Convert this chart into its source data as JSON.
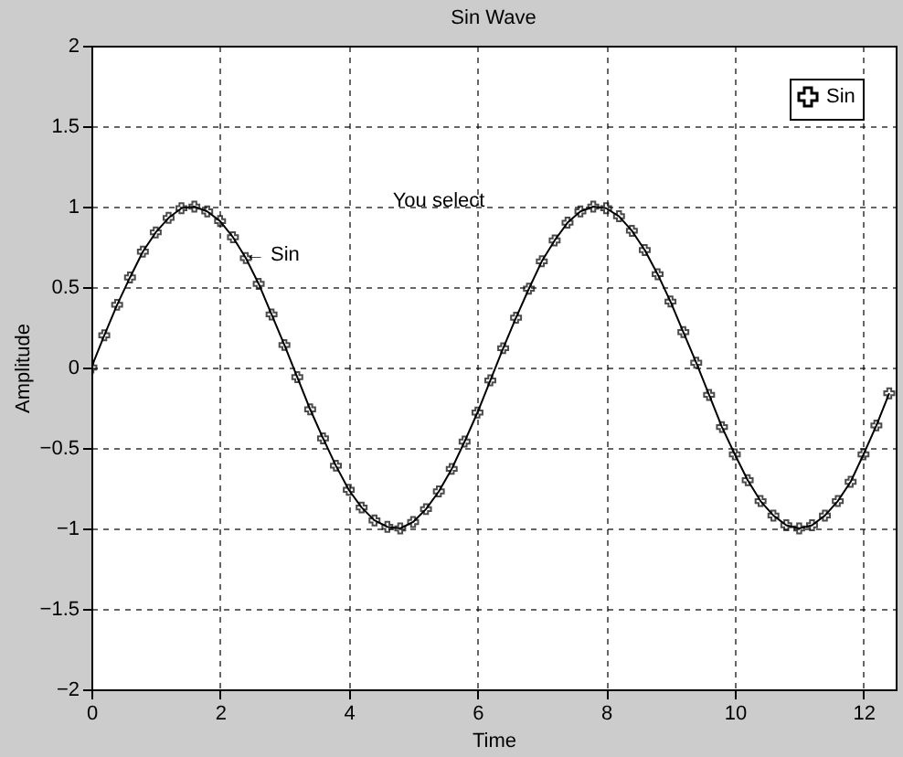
{
  "chart_data": {
    "type": "line",
    "title": "Sin Wave",
    "xlabel": "Time",
    "ylabel": "Amplitude",
    "x": [
      0,
      0.2,
      0.4,
      0.6,
      0.8,
      1.0,
      1.2,
      1.4,
      1.6,
      1.8,
      2.0,
      2.2,
      2.4,
      2.6,
      2.8,
      3.0,
      3.2,
      3.4,
      3.6,
      3.8,
      4.0,
      4.2,
      4.4,
      4.6,
      4.8,
      5.0,
      5.2,
      5.4,
      5.6,
      5.8,
      6.0,
      6.2,
      6.4,
      6.6,
      6.8,
      7.0,
      7.2,
      7.4,
      7.6,
      7.8,
      8.0,
      8.2,
      8.4,
      8.6,
      8.8,
      9.0,
      9.2,
      9.4,
      9.6,
      9.8,
      10.0,
      10.2,
      10.4,
      10.6,
      10.8,
      11.0,
      11.2,
      11.4,
      11.6,
      11.8,
      12.0,
      12.2,
      12.4
    ],
    "series": [
      {
        "name": "Sin",
        "color": "#000000",
        "values": [
          0,
          0.2,
          0.39,
          0.56,
          0.72,
          0.84,
          0.93,
          0.99,
          1.0,
          0.97,
          0.91,
          0.81,
          0.68,
          0.52,
          0.33,
          0.14,
          -0.06,
          -0.26,
          -0.44,
          -0.61,
          -0.76,
          -0.87,
          -0.95,
          -0.99,
          -1.0,
          -0.96,
          -0.88,
          -0.77,
          -0.63,
          -0.46,
          -0.28,
          -0.08,
          0.12,
          0.31,
          0.49,
          0.66,
          0.79,
          0.9,
          0.97,
          1.0,
          0.99,
          0.94,
          0.85,
          0.73,
          0.58,
          0.41,
          0.22,
          0.03,
          -0.17,
          -0.37,
          -0.54,
          -0.7,
          -0.83,
          -0.92,
          -0.98,
          -1.0,
          -0.98,
          -0.92,
          -0.83,
          -0.71,
          -0.54,
          -0.36,
          -0.16
        ]
      }
    ],
    "xlim": [
      0,
      12.5
    ],
    "xticks": [
      0,
      2,
      4,
      6,
      8,
      10,
      12
    ],
    "ylim": [
      -2,
      2
    ],
    "yticks": [
      -2,
      -1.5,
      -1,
      -0.5,
      0,
      0.5,
      1,
      1.5,
      2
    ],
    "grid": true,
    "legend": "top right",
    "marker": "cross",
    "line_style": "solid",
    "annotations": [
      "You select",
      {
        "text": "← Sin",
        "x": 2.3,
        "y": 0.7
      }
    ]
  }
}
